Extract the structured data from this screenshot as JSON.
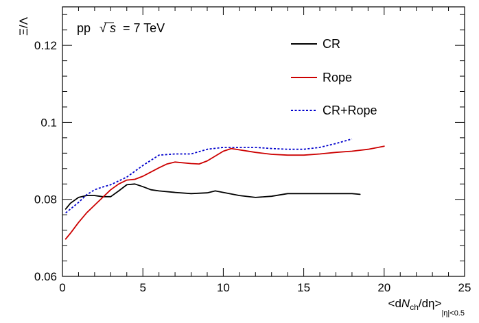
{
  "chart_data": {
    "type": "line",
    "energy_label": {
      "prefix": "pp",
      "sqrt_symbol": "√",
      "variable": "s",
      "suffix": "= 7 TeV"
    },
    "xlabel": {
      "open": "<d",
      "var": "N",
      "sub": "ch",
      "middle": "/dη>",
      "range_sub": "|η|<0.5"
    },
    "ylabel": "Ξ/Λ",
    "xlim": [
      0,
      25
    ],
    "ylim": [
      0.06,
      0.13
    ],
    "x_ticks": [
      0,
      5,
      10,
      15,
      20,
      25
    ],
    "x_tick_labels": [
      "0",
      "5",
      "10",
      "15",
      "20",
      "25"
    ],
    "y_ticks": [
      0.06,
      0.08,
      0.1,
      0.12
    ],
    "y_tick_labels": [
      "0.06",
      "0.08",
      "0.1",
      "0.12"
    ],
    "legend_position": "top-right",
    "grid": false,
    "series": [
      {
        "name": "CR",
        "color": "#000000",
        "style": "solid",
        "x": [
          0.2,
          0.5,
          1.0,
          1.5,
          2.0,
          2.5,
          3.0,
          3.5,
          4.0,
          4.5,
          5.0,
          5.5,
          6.0,
          7.0,
          8.0,
          9.0,
          9.5,
          10.0,
          11.0,
          12.0,
          13.0,
          14.0,
          15.0,
          16.0,
          17.0,
          18.0,
          18.5
        ],
        "y": [
          0.0775,
          0.079,
          0.0805,
          0.081,
          0.081,
          0.0807,
          0.0807,
          0.0822,
          0.0838,
          0.084,
          0.0833,
          0.0825,
          0.0822,
          0.0818,
          0.0815,
          0.0817,
          0.0822,
          0.0818,
          0.081,
          0.0805,
          0.0808,
          0.0815,
          0.0815,
          0.0815,
          0.0815,
          0.0815,
          0.0813
        ]
      },
      {
        "name": "Rope",
        "color": "#cc0000",
        "style": "solid",
        "x": [
          0.2,
          0.5,
          1.0,
          1.5,
          2.0,
          2.5,
          3.0,
          3.5,
          4.0,
          4.5,
          5.0,
          6.0,
          6.5,
          7.0,
          8.0,
          8.5,
          9.0,
          10.0,
          10.5,
          12.0,
          13.0,
          14.0,
          15.0,
          16.0,
          17.0,
          18.0,
          19.0,
          20.0
        ],
        "y": [
          0.0697,
          0.0712,
          0.074,
          0.0765,
          0.0785,
          0.0805,
          0.0825,
          0.084,
          0.085,
          0.0852,
          0.086,
          0.0882,
          0.0892,
          0.0897,
          0.0893,
          0.0892,
          0.09,
          0.0925,
          0.0932,
          0.0922,
          0.0917,
          0.0915,
          0.0915,
          0.0918,
          0.0922,
          0.0925,
          0.093,
          0.0938
        ]
      },
      {
        "name": "CR+Rope",
        "color": "#0000cc",
        "style": "dotted",
        "x": [
          0.2,
          0.5,
          1.0,
          1.5,
          2.0,
          2.5,
          3.0,
          4.0,
          5.0,
          6.0,
          7.0,
          8.0,
          9.0,
          10.0,
          11.0,
          12.0,
          13.0,
          14.0,
          15.0,
          16.0,
          17.0,
          18.0
        ],
        "y": [
          0.0765,
          0.0775,
          0.0792,
          0.0812,
          0.0825,
          0.0832,
          0.0838,
          0.0858,
          0.0888,
          0.0915,
          0.0918,
          0.0918,
          0.093,
          0.0935,
          0.0935,
          0.0935,
          0.0932,
          0.093,
          0.093,
          0.0935,
          0.0945,
          0.0957
        ]
      }
    ]
  }
}
